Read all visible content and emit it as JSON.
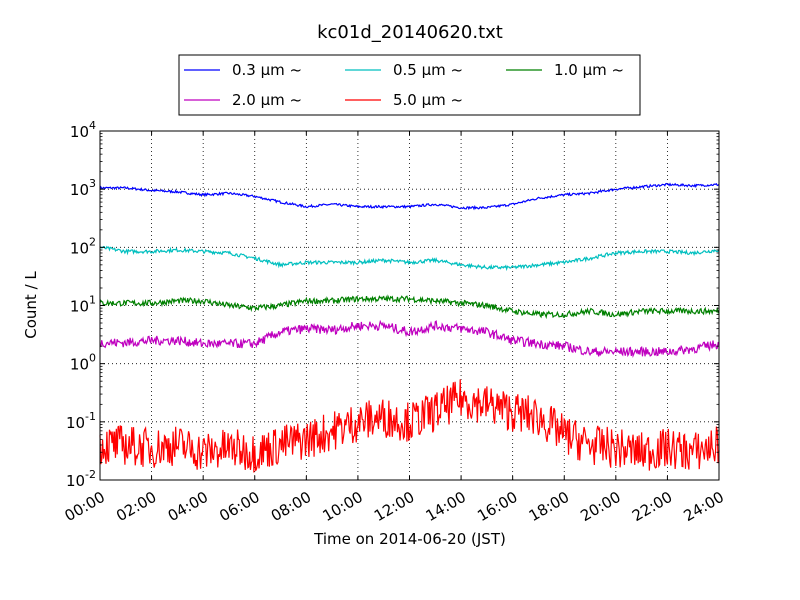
{
  "chart_data": {
    "type": "line",
    "title": "kc01d_20140620.txt",
    "xlabel": "Time on 2014-06-20 (JST)",
    "ylabel": "Count / L",
    "yscale": "log",
    "ylim": [
      0.01,
      10000
    ],
    "xlim": [
      "2014-06-20 00:00",
      "2014-06-21 00:00"
    ],
    "grid": true,
    "legend_position": "top, above plot, 3 columns",
    "x_ticks": [
      "00:00",
      "02:00",
      "04:00",
      "06:00",
      "08:00",
      "10:00",
      "12:00",
      "14:00",
      "16:00",
      "18:00",
      "20:00",
      "22:00",
      "24:00"
    ],
    "y_ticks": [
      {
        "value": 0.01,
        "base": "10",
        "exp": "-2"
      },
      {
        "value": 0.1,
        "base": "10",
        "exp": "-1"
      },
      {
        "value": 1,
        "base": "10",
        "exp": "0"
      },
      {
        "value": 10,
        "base": "10",
        "exp": "1"
      },
      {
        "value": 100,
        "base": "10",
        "exp": "2"
      },
      {
        "value": 1000,
        "base": "10",
        "exp": "3"
      },
      {
        "value": 10000,
        "base": "10",
        "exp": "4"
      }
    ],
    "x_hours": [
      0,
      1,
      2,
      3,
      4,
      5,
      6,
      7,
      8,
      9,
      10,
      11,
      12,
      13,
      14,
      15,
      16,
      17,
      18,
      19,
      20,
      21,
      22,
      23,
      24
    ],
    "series": [
      {
        "name": "0.3 μm ~",
        "color": "#0000ff",
        "values": [
          1050,
          1050,
          950,
          900,
          800,
          850,
          750,
          600,
          500,
          550,
          500,
          500,
          500,
          550,
          480,
          480,
          550,
          700,
          800,
          850,
          1000,
          1100,
          1200,
          1150,
          1200
        ]
      },
      {
        "name": "0.5 μm ~",
        "color": "#00bfbf",
        "values": [
          100,
          85,
          85,
          90,
          85,
          80,
          65,
          50,
          55,
          55,
          55,
          60,
          55,
          60,
          50,
          45,
          45,
          50,
          55,
          65,
          80,
          85,
          85,
          80,
          90
        ]
      },
      {
        "name": "1.0 μm ~",
        "color": "#008000",
        "values": [
          11,
          11,
          11,
          12,
          12,
          10,
          9,
          10,
          12,
          12,
          13,
          13,
          13,
          12,
          11,
          10,
          8,
          7,
          7,
          8,
          7,
          8,
          8,
          8,
          8
        ]
      },
      {
        "name": "2.0 μm ~",
        "color": "#bf00bf",
        "values": [
          2.3,
          2.3,
          2.5,
          2.5,
          2.2,
          2.2,
          2.2,
          3.5,
          4,
          3.8,
          4.5,
          4.5,
          3.5,
          4.5,
          4,
          3.5,
          2.5,
          2.2,
          2,
          1.6,
          1.6,
          1.6,
          1.6,
          1.8,
          2.2
        ]
      },
      {
        "name": "5.0 μm ~",
        "color": "#ff0000",
        "values": [
          0.04,
          0.04,
          0.035,
          0.04,
          0.03,
          0.035,
          0.03,
          0.04,
          0.05,
          0.07,
          0.1,
          0.12,
          0.1,
          0.15,
          0.25,
          0.2,
          0.15,
          0.12,
          0.06,
          0.04,
          0.035,
          0.03,
          0.035,
          0.03,
          0.04
        ]
      }
    ]
  }
}
